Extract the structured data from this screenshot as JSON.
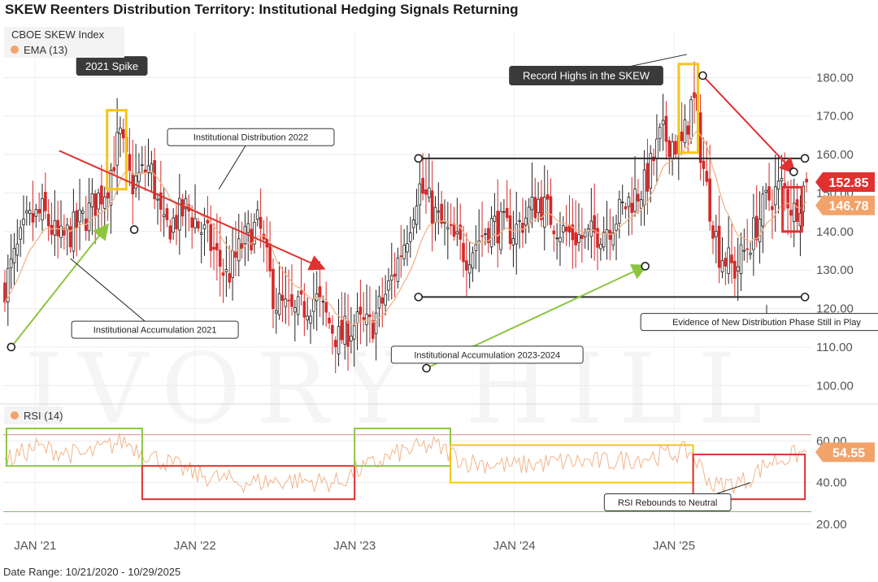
{
  "chart_data": {
    "type": "candlestick",
    "title": "SKEW Reenters Distribution Territory: Institutional Hedging Signals Returning",
    "footer": "Date Range: 10/21/2020 - 10/29/2025",
    "watermark": "IVORY HILL",
    "price_panel": {
      "legend": [
        {
          "label": "CBOE SKEW Index",
          "color": null
        },
        {
          "label": "EMA (13)",
          "color": "#f2a36a"
        }
      ],
      "ylim": [
        95,
        190
      ],
      "yticks": [
        100,
        110,
        120,
        130,
        140,
        150,
        160,
        170,
        180
      ],
      "ytick_labels": [
        "100.00",
        "110.00",
        "120.00",
        "130.00",
        "140.00",
        "150.00",
        "160.00",
        "170.00",
        "180.00"
      ],
      "last_price": {
        "value": 152.85,
        "label": "152.85",
        "color": "#e03030"
      },
      "last_ema": {
        "value": 146.78,
        "label": "146.78",
        "color": "#f2a36a"
      },
      "up_color": "#222222",
      "down_color": "#d62828",
      "ema_color": "#f2b48a",
      "price_path": [
        {
          "t": 2020.8,
          "v": 125
        },
        {
          "t": 2020.95,
          "v": 142
        },
        {
          "t": 2021.05,
          "v": 145
        },
        {
          "t": 2021.15,
          "v": 137
        },
        {
          "t": 2021.3,
          "v": 143
        },
        {
          "t": 2021.45,
          "v": 152
        },
        {
          "t": 2021.53,
          "v": 165
        },
        {
          "t": 2021.6,
          "v": 152
        },
        {
          "t": 2021.72,
          "v": 157
        },
        {
          "t": 2021.8,
          "v": 140
        },
        {
          "t": 2021.95,
          "v": 146
        },
        {
          "t": 2022.08,
          "v": 138
        },
        {
          "t": 2022.2,
          "v": 128
        },
        {
          "t": 2022.3,
          "v": 137
        },
        {
          "t": 2022.4,
          "v": 142
        },
        {
          "t": 2022.5,
          "v": 122
        },
        {
          "t": 2022.62,
          "v": 118
        },
        {
          "t": 2022.75,
          "v": 123
        },
        {
          "t": 2022.9,
          "v": 112
        },
        {
          "t": 2023.0,
          "v": 116
        },
        {
          "t": 2023.1,
          "v": 115
        },
        {
          "t": 2023.22,
          "v": 126
        },
        {
          "t": 2023.33,
          "v": 140
        },
        {
          "t": 2023.4,
          "v": 152
        },
        {
          "t": 2023.55,
          "v": 141
        },
        {
          "t": 2023.7,
          "v": 134
        },
        {
          "t": 2023.85,
          "v": 142
        },
        {
          "t": 2024.0,
          "v": 140
        },
        {
          "t": 2024.15,
          "v": 148
        },
        {
          "t": 2024.3,
          "v": 140
        },
        {
          "t": 2024.45,
          "v": 138
        },
        {
          "t": 2024.6,
          "v": 142
        },
        {
          "t": 2024.72,
          "v": 148
        },
        {
          "t": 2024.82,
          "v": 152
        },
        {
          "t": 2024.92,
          "v": 165
        },
        {
          "t": 2025.05,
          "v": 162
        },
        {
          "t": 2025.12,
          "v": 175
        },
        {
          "t": 2025.2,
          "v": 152
        },
        {
          "t": 2025.28,
          "v": 135
        },
        {
          "t": 2025.38,
          "v": 130
        },
        {
          "t": 2025.48,
          "v": 138
        },
        {
          "t": 2025.58,
          "v": 148
        },
        {
          "t": 2025.68,
          "v": 152
        },
        {
          "t": 2025.75,
          "v": 145
        },
        {
          "t": 2025.83,
          "v": 152.85
        }
      ]
    },
    "rsi_panel": {
      "legend": {
        "label": "RSI (14)",
        "color": "#f2a36a"
      },
      "last": {
        "value": 54.55,
        "label": "54.55"
      },
      "ylim": [
        18,
        68
      ],
      "yticks": [
        20,
        40,
        60
      ],
      "ytick_labels": [
        "20.00",
        "40.00",
        "60.00"
      ],
      "upper_band": 63,
      "lower_band": 26,
      "rsi_path": [
        {
          "t": 2020.8,
          "v": 50
        },
        {
          "t": 2021.0,
          "v": 57
        },
        {
          "t": 2021.3,
          "v": 53
        },
        {
          "t": 2021.55,
          "v": 60
        },
        {
          "t": 2021.75,
          "v": 52
        },
        {
          "t": 2022.0,
          "v": 44
        },
        {
          "t": 2022.3,
          "v": 40
        },
        {
          "t": 2022.6,
          "v": 41
        },
        {
          "t": 2022.9,
          "v": 40
        },
        {
          "t": 2023.0,
          "v": 45
        },
        {
          "t": 2023.3,
          "v": 55
        },
        {
          "t": 2023.5,
          "v": 58
        },
        {
          "t": 2023.7,
          "v": 50
        },
        {
          "t": 2024.0,
          "v": 48
        },
        {
          "t": 2024.3,
          "v": 50
        },
        {
          "t": 2024.6,
          "v": 50
        },
        {
          "t": 2024.9,
          "v": 53
        },
        {
          "t": 2025.1,
          "v": 55
        },
        {
          "t": 2025.25,
          "v": 38
        },
        {
          "t": 2025.45,
          "v": 41
        },
        {
          "t": 2025.6,
          "v": 50
        },
        {
          "t": 2025.83,
          "v": 54.55
        }
      ]
    },
    "x_axis": {
      "ticks": [
        {
          "t": 2021.0,
          "label": "JAN '21"
        },
        {
          "t": 2022.0,
          "label": "JAN '22"
        },
        {
          "t": 2023.0,
          "label": "JAN '23"
        },
        {
          "t": 2024.0,
          "label": "JAN '24"
        },
        {
          "t": 2025.0,
          "label": "JAN '25"
        }
      ]
    },
    "levels": [
      {
        "value": 159,
        "from": 2023.4,
        "to": 2025.82,
        "color": "#2b2b2b"
      },
      {
        "value": 123,
        "from": 2023.4,
        "to": 2025.82,
        "color": "#2b2b2b"
      }
    ],
    "annotations": {
      "callouts": [
        {
          "text": "2021 Spike",
          "t": 2021.48,
          "v": 183,
          "dark": true
        },
        {
          "text": "Record Highs in the SKEW",
          "t": 2024.45,
          "v": 180.5,
          "dark": true
        },
        {
          "text": "Institutional Distribution 2022",
          "t": 2022.35,
          "v": 164.5,
          "dark": false
        },
        {
          "text": "Institutional Accumulation 2021",
          "t": 2021.75,
          "v": 114.5,
          "dark": false
        },
        {
          "text": "Institutional Accumulation 2023-2024",
          "t": 2023.83,
          "v": 108,
          "dark": false
        },
        {
          "text": "Evidence of New Distribution Phase Still in Play",
          "t": 2025.58,
          "v": 116.5,
          "dark": false
        }
      ],
      "rsi_callouts": [
        {
          "text": "RSI Rebounds to Neutral",
          "t": 2024.96,
          "v": 30.5
        }
      ],
      "arrows": [
        {
          "from": [
            2021.15,
            161
          ],
          "to": [
            2022.8,
            130.5
          ],
          "color": "#e03030"
        },
        {
          "from": [
            2025.18,
            180.5
          ],
          "to": [
            2025.75,
            155.5
          ],
          "color": "#e03030"
        },
        {
          "from": [
            2020.85,
            110
          ],
          "to": [
            2021.45,
            141.5
          ],
          "color": "#8cc63f"
        },
        {
          "from": [
            2023.45,
            104.5
          ],
          "to": [
            2024.82,
            131
          ],
          "color": "#8cc63f"
        }
      ],
      "circles": [
        {
          "t": 2020.85,
          "v": 110
        },
        {
          "t": 2021.62,
          "v": 140.5
        },
        {
          "t": 2023.45,
          "v": 104.5
        },
        {
          "t": 2024.82,
          "v": 131
        },
        {
          "t": 2025.18,
          "v": 180.5
        },
        {
          "t": 2025.75,
          "v": 155.5
        },
        {
          "t": 2023.4,
          "v": 159
        },
        {
          "t": 2025.82,
          "v": 159
        },
        {
          "t": 2023.4,
          "v": 123
        },
        {
          "t": 2025.82,
          "v": 123
        }
      ],
      "price_boxes": [
        {
          "t0": 2021.45,
          "t1": 2021.57,
          "v0": 151,
          "v1": 171.5,
          "color": "#f5c518"
        },
        {
          "t0": 2025.03,
          "t1": 2025.15,
          "v0": 160.5,
          "v1": 183.5,
          "color": "#f5c518"
        },
        {
          "t0": 2025.68,
          "t1": 2025.8,
          "v0": 140,
          "v1": 151.5,
          "color": "#e03030"
        }
      ],
      "rsi_boxes": [
        {
          "t0": 2020.82,
          "t1": 2021.67,
          "v0": 48,
          "v1": 66,
          "color": "#8cc63f"
        },
        {
          "t0": 2021.67,
          "t1": 2023.0,
          "v0": 32,
          "v1": 48,
          "color": "#e03030"
        },
        {
          "t0": 2023.0,
          "t1": 2023.6,
          "v0": 48,
          "v1": 66,
          "color": "#8cc63f"
        },
        {
          "t0": 2023.6,
          "t1": 2025.12,
          "v0": 40,
          "v1": 58,
          "color": "#f5c518"
        },
        {
          "t0": 2025.12,
          "t1": 2025.82,
          "v0": 32,
          "v1": 53.5,
          "color": "#e03030"
        }
      ]
    }
  }
}
